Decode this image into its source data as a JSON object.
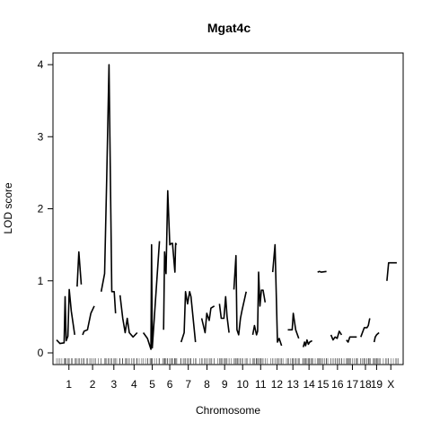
{
  "chart_data": {
    "type": "line",
    "title": "Mgat4c",
    "xlabel": "Chromosome",
    "ylabel": "LOD score",
    "ylim": [
      -0.15,
      4.2
    ],
    "yticks": [
      0,
      1,
      2,
      3,
      4
    ],
    "ytick_labels": [
      "0",
      "1",
      "2",
      "3",
      "4"
    ],
    "grid": false,
    "legend": "none",
    "line_color": "#000000",
    "xaxis_span": [
      0,
      100
    ],
    "chromosomes": [
      {
        "name": "1",
        "start": 0.0,
        "end": 7.2,
        "show_label": true
      },
      {
        "name": "2",
        "start": 7.6,
        "end": 13.4,
        "show_label": true
      },
      {
        "name": "3",
        "start": 13.8,
        "end": 19.6,
        "show_label": true
      },
      {
        "name": "4",
        "start": 20.0,
        "end": 25.2,
        "show_label": true
      },
      {
        "name": "5",
        "start": 25.6,
        "end": 30.2,
        "show_label": true
      },
      {
        "name": "6",
        "start": 30.6,
        "end": 35.4,
        "show_label": true
      },
      {
        "name": "7",
        "start": 35.8,
        "end": 41.0,
        "show_label": true
      },
      {
        "name": "8",
        "start": 41.4,
        "end": 46.3,
        "show_label": true
      },
      {
        "name": "9",
        "start": 46.7,
        "end": 51.3,
        "show_label": true
      },
      {
        "name": "10",
        "start": 51.7,
        "end": 56.8,
        "show_label": true
      },
      {
        "name": "11",
        "start": 57.2,
        "end": 61.8,
        "show_label": true
      },
      {
        "name": "12",
        "start": 62.2,
        "end": 66.3,
        "show_label": true
      },
      {
        "name": "13",
        "start": 66.7,
        "end": 71.1,
        "show_label": true
      },
      {
        "name": "14",
        "start": 71.5,
        "end": 75.7,
        "show_label": true
      },
      {
        "name": "15",
        "start": 76.1,
        "end": 79.3,
        "show_label": true
      },
      {
        "name": "16",
        "start": 79.7,
        "end": 84.1,
        "show_label": true
      },
      {
        "name": "17",
        "start": 84.5,
        "end": 88.0,
        "show_label": true
      },
      {
        "name": "18",
        "start": 88.4,
        "end": 91.7,
        "show_label": true
      },
      {
        "name": "19",
        "start": 92.1,
        "end": 94.5,
        "show_label": true
      },
      {
        "name": "X",
        "start": 94.9,
        "end": 100.0,
        "show_label": true
      }
    ],
    "series": [
      {
        "chr": "1",
        "x": [
          0.0,
          1.0,
          2.2,
          2.5,
          2.8,
          3.3,
          3.7,
          4.3,
          5.3
        ],
        "y": [
          0.18,
          0.13,
          0.14,
          0.78,
          0.17,
          0.23,
          0.88,
          0.58,
          0.25
        ]
      },
      {
        "chr": "1b",
        "x": [
          6.0,
          6.5,
          7.2
        ],
        "y": [
          0.92,
          1.4,
          0.95
        ]
      },
      {
        "chr": "2",
        "x": [
          7.6,
          8.0,
          9.0,
          10.0,
          11.0
        ],
        "y": [
          0.25,
          0.3,
          0.32,
          0.55,
          0.65
        ]
      },
      {
        "chr": "3",
        "x": [
          13.0,
          14.0,
          14.6,
          15.3,
          16.1,
          16.8,
          17.2
        ],
        "y": [
          0.85,
          1.1,
          2.4,
          4.0,
          0.85,
          0.85,
          0.55
        ]
      },
      {
        "chr": "4",
        "x": [
          18.5,
          19.3,
          20.0,
          20.6,
          21.2,
          22.3,
          23.5
        ],
        "y": [
          0.8,
          0.48,
          0.28,
          0.48,
          0.28,
          0.22,
          0.28
        ]
      },
      {
        "chr": "5",
        "x": [
          25.3,
          26.5,
          27.5,
          27.7,
          27.9,
          30.0
        ],
        "y": [
          0.28,
          0.2,
          0.05,
          1.5,
          0.07,
          1.55
        ]
      },
      {
        "chr": "6",
        "x": [
          31.2,
          31.5,
          31.9,
          32.4,
          33.0,
          33.5,
          33.8,
          34.5,
          34.7,
          35.0
        ],
        "y": [
          0.32,
          1.4,
          1.1,
          2.25,
          1.5,
          1.52,
          1.52,
          1.12,
          1.52,
          1.5
        ]
      },
      {
        "chr": "7",
        "x": [
          36.3,
          37.2,
          37.6,
          38.2,
          38.8,
          39.2,
          40.5
        ],
        "y": [
          0.15,
          0.28,
          0.85,
          0.68,
          0.85,
          0.78,
          0.15
        ]
      },
      {
        "chr": "8",
        "x": [
          42.3,
          43.3,
          43.8,
          44.5,
          45.0,
          46.0
        ],
        "y": [
          0.48,
          0.28,
          0.55,
          0.45,
          0.62,
          0.65
        ]
      },
      {
        "chr": "9",
        "x": [
          47.5,
          48.0,
          48.8,
          49.3,
          49.7,
          50.3
        ],
        "y": [
          0.68,
          0.48,
          0.48,
          0.78,
          0.5,
          0.28
        ]
      },
      {
        "chr": "10",
        "x": [
          51.7,
          52.3,
          52.6,
          53.1,
          53.6,
          54.1,
          55.3
        ],
        "y": [
          0.88,
          1.35,
          0.32,
          0.25,
          0.48,
          0.6,
          0.85
        ]
      },
      {
        "chr": "11",
        "x": [
          57.2,
          57.7,
          58.3,
          58.6,
          58.9,
          59.3,
          59.7,
          60.2,
          60.8
        ],
        "y": [
          0.25,
          0.38,
          0.25,
          0.3,
          1.12,
          0.65,
          0.87,
          0.87,
          0.7
        ]
      },
      {
        "chr": "12",
        "x": [
          63.0,
          63.7,
          64.4,
          64.9,
          65.6
        ],
        "y": [
          1.12,
          1.5,
          0.15,
          0.2,
          0.1
        ]
      },
      {
        "chr": "13",
        "x": [
          67.4,
          68.7,
          69.0,
          69.7,
          70.6
        ],
        "y": [
          0.32,
          0.32,
          0.55,
          0.32,
          0.2
        ]
      },
      {
        "chr": "14",
        "x": [
          71.9,
          72.3,
          72.6,
          73.0,
          73.4,
          73.8,
          74.5
        ],
        "y": [
          0.08,
          0.15,
          0.1,
          0.18,
          0.12,
          0.15,
          0.17
        ]
      },
      {
        "chr": "15",
        "x": [
          76.1,
          76.6,
          77.2,
          78.7
        ],
        "y": [
          1.12,
          1.13,
          1.12,
          1.13
        ]
      },
      {
        "chr": "16",
        "x": [
          80.0,
          80.6,
          81.2,
          81.8,
          82.4,
          83.1
        ],
        "y": [
          0.25,
          0.18,
          0.22,
          0.2,
          0.3,
          0.25
        ]
      },
      {
        "chr": "17",
        "x": [
          84.5,
          85.0,
          85.5,
          87.5
        ],
        "y": [
          0.18,
          0.15,
          0.22,
          0.22
        ]
      },
      {
        "chr": "18",
        "x": [
          88.7,
          89.7,
          90.5,
          90.9,
          91.3
        ],
        "y": [
          0.22,
          0.35,
          0.35,
          0.38,
          0.48
        ]
      },
      {
        "chr": "19",
        "x": [
          92.6,
          92.9,
          93.3,
          94.0
        ],
        "y": [
          0.15,
          0.22,
          0.25,
          0.28
        ]
      },
      {
        "chr": "X",
        "x": [
          96.3,
          96.8,
          99.2
        ],
        "y": [
          1.0,
          1.25,
          1.25
        ]
      }
    ]
  }
}
